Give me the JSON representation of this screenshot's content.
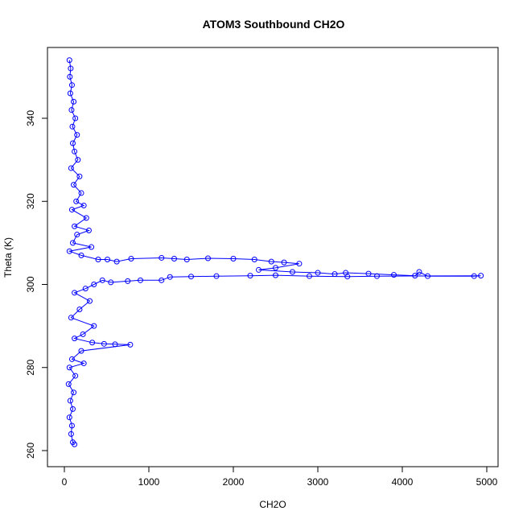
{
  "chart_data": {
    "type": "scatter",
    "title": "ATOM3 Southbound CH2O",
    "xlabel": "CH2O",
    "ylabel": "Theta (K)",
    "xlim": [
      0,
      5000
    ],
    "ylim": [
      260,
      355
    ],
    "xticks": [
      0,
      1000,
      2000,
      3000,
      4000,
      5000
    ],
    "yticks": [
      260,
      280,
      300,
      320,
      340
    ],
    "grid": false,
    "legend": "none",
    "colors": {
      "series": "#0000ff"
    },
    "series": [
      {
        "points": [
          [
            60,
            354
          ],
          [
            75,
            352
          ],
          [
            65,
            350
          ],
          [
            90,
            348
          ],
          [
            70,
            346
          ],
          [
            110,
            344
          ],
          [
            85,
            342
          ],
          [
            130,
            340
          ],
          [
            95,
            338
          ],
          [
            150,
            336
          ],
          [
            100,
            334
          ],
          [
            120,
            332
          ],
          [
            160,
            330
          ],
          [
            80,
            328
          ],
          [
            180,
            326
          ],
          [
            110,
            324
          ],
          [
            200,
            322
          ],
          [
            140,
            320
          ],
          [
            230,
            319
          ],
          [
            90,
            318
          ],
          [
            260,
            316
          ],
          [
            120,
            314
          ],
          [
            290,
            313
          ],
          [
            150,
            312
          ],
          [
            100,
            310
          ],
          [
            320,
            309
          ],
          [
            60,
            308
          ],
          [
            200,
            307
          ],
          [
            400,
            306
          ],
          [
            510,
            306
          ],
          [
            620,
            305.5
          ],
          [
            790,
            306.2
          ],
          [
            1150,
            306.4
          ],
          [
            1300,
            306.2
          ],
          [
            1450,
            306
          ],
          [
            1700,
            306.3
          ],
          [
            2000,
            306.2
          ],
          [
            2250,
            306
          ],
          [
            2450,
            305.5
          ],
          [
            2600,
            305.3
          ],
          [
            2780,
            305
          ],
          [
            2500,
            304
          ],
          [
            2300,
            303.5
          ],
          [
            2700,
            303
          ],
          [
            3000,
            302.8
          ],
          [
            3200,
            302.5
          ],
          [
            3330,
            302.8
          ],
          [
            3600,
            302.6
          ],
          [
            3900,
            302.3
          ],
          [
            4150,
            302.1
          ],
          [
            4200,
            303
          ],
          [
            4300,
            302
          ],
          [
            4850,
            302
          ],
          [
            4930,
            302.1
          ],
          [
            3700,
            302
          ],
          [
            3350,
            301.9
          ],
          [
            2900,
            302
          ],
          [
            2500,
            302.2
          ],
          [
            2200,
            302.1
          ],
          [
            1800,
            302
          ],
          [
            1500,
            301.9
          ],
          [
            1250,
            301.8
          ],
          [
            1150,
            301
          ],
          [
            900,
            301
          ],
          [
            750,
            300.8
          ],
          [
            550,
            300.5
          ],
          [
            450,
            301
          ],
          [
            350,
            300
          ],
          [
            250,
            299
          ],
          [
            120,
            298
          ],
          [
            300,
            296
          ],
          [
            180,
            294
          ],
          [
            80,
            292
          ],
          [
            350,
            290
          ],
          [
            220,
            288
          ],
          [
            120,
            287
          ],
          [
            330,
            286
          ],
          [
            470,
            285.7
          ],
          [
            600,
            285.6
          ],
          [
            780,
            285.5
          ],
          [
            200,
            284
          ],
          [
            90,
            282
          ],
          [
            230,
            281
          ],
          [
            60,
            280
          ],
          [
            130,
            278
          ],
          [
            50,
            276
          ],
          [
            110,
            274
          ],
          [
            70,
            272
          ],
          [
            100,
            270
          ],
          [
            60,
            268
          ],
          [
            90,
            266
          ],
          [
            80,
            264
          ],
          [
            100,
            262
          ],
          [
            120,
            261.5
          ]
        ]
      }
    ]
  }
}
